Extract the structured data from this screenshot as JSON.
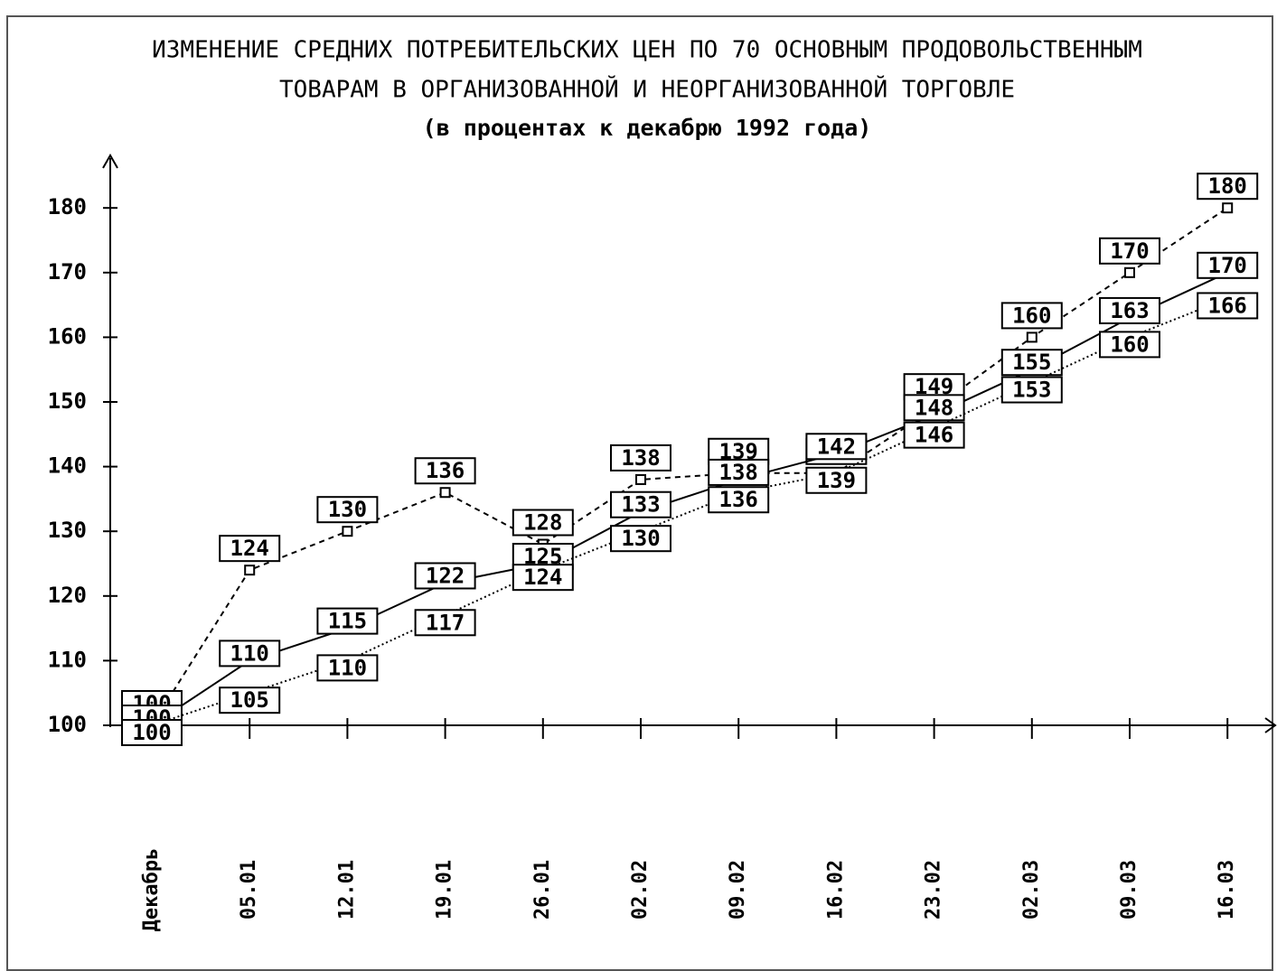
{
  "chart_data": {
    "type": "line",
    "title": [
      "ИЗМЕНЕНИЕ СРЕДНИХ ПОТРЕБИТЕЛЬСКИХ ЦЕН ПО 70 ОСНОВНЫМ ПРОДОВОЛЬСТВЕННЫМ",
      "ТОВАРАМ В ОРГАНИЗОВАННОЙ И НЕОРГАНИЗОВАННОЙ ТОРГОВЛЕ"
    ],
    "subtitle": "(в процентах к декабрю 1992 года)",
    "categories": [
      "Декабрь",
      "05.01",
      "12.01",
      "19.01",
      "26.01",
      "02.02",
      "09.02",
      "16.02",
      "23.02",
      "02.03",
      "09.03",
      "16.03"
    ],
    "series": [
      {
        "color": "#000000",
        "style": "dashed",
        "marker": "square",
        "values": [
          100,
          124,
          130,
          136,
          128,
          138,
          139,
          139,
          149,
          160,
          170,
          180
        ]
      },
      {
        "color": "#000000",
        "style": "solid",
        "marker": "none",
        "values": [
          100,
          110,
          115,
          122,
          125,
          133,
          138,
          142,
          148,
          155,
          163,
          170
        ]
      },
      {
        "color": "#000000",
        "style": "dotted",
        "marker": "triangle",
        "values": [
          100,
          105,
          110,
          117,
          124,
          130,
          136,
          139,
          146,
          153,
          160,
          166
        ]
      }
    ],
    "ylim": [
      100,
      188
    ],
    "yticks": [
      100,
      110,
      120,
      130,
      140,
      150,
      160,
      170,
      180
    ],
    "grid": false
  }
}
